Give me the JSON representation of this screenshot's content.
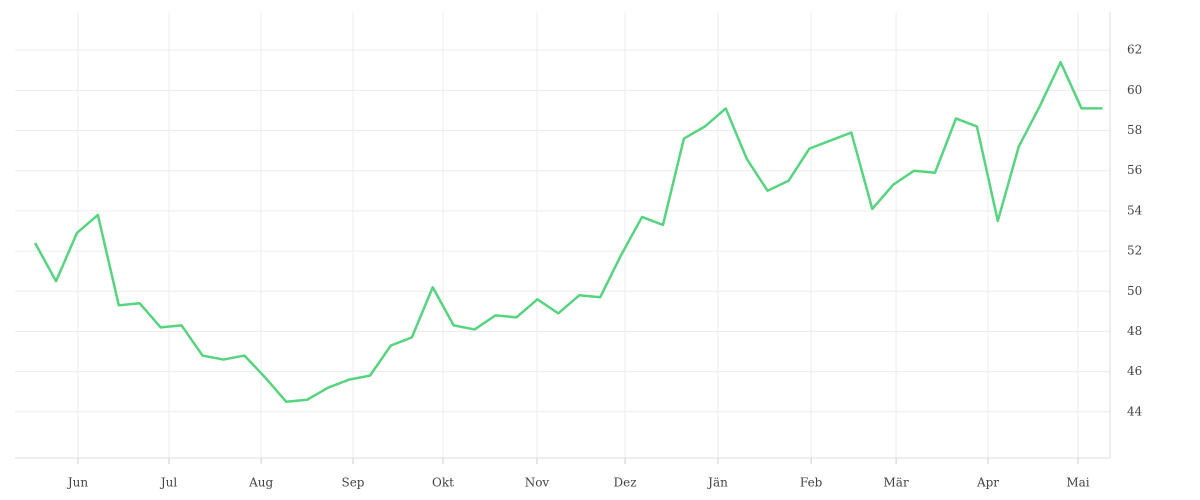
{
  "chart_data": {
    "type": "line",
    "x": [
      0,
      1,
      2,
      3,
      4,
      5,
      6,
      7,
      8,
      9,
      10,
      11,
      12,
      13,
      14,
      15,
      16,
      17,
      18,
      19,
      20,
      21,
      22,
      23,
      24,
      25,
      26,
      27,
      28,
      29,
      30,
      31,
      32,
      33,
      34,
      35,
      36,
      37,
      38,
      39,
      40,
      41,
      42,
      43,
      44,
      45,
      46,
      47,
      48,
      49,
      50,
      51
    ],
    "series": [
      {
        "color": "#57d47f",
        "values": [
          52.4,
          50.5,
          52.9,
          53.8,
          49.3,
          49.4,
          48.2,
          48.3,
          46.8,
          46.6,
          46.8,
          45.7,
          44.5,
          44.6,
          45.2,
          45.6,
          45.8,
          47.3,
          47.7,
          50.2,
          48.3,
          48.1,
          48.8,
          48.7,
          49.6,
          48.9,
          49.8,
          49.7,
          51.8,
          53.7,
          53.3,
          57.6,
          58.2,
          59.1,
          56.6,
          55.0,
          55.5,
          57.1,
          57.5,
          57.9,
          54.1,
          55.3,
          56.0,
          55.9,
          58.6,
          58.2,
          53.5,
          57.2,
          59.2,
          61.4,
          59.1,
          59.1
        ]
      }
    ],
    "xlim": [
      -0.96,
      51.36
    ],
    "xticks": [
      {
        "value": 2.05,
        "label": "Jun"
      },
      {
        "value": 6.4,
        "label": "Jul"
      },
      {
        "value": 10.8,
        "label": "Aug"
      },
      {
        "value": 15.19,
        "label": "Sep"
      },
      {
        "value": 19.49,
        "label": "Okt"
      },
      {
        "value": 23.98,
        "label": "Nov"
      },
      {
        "value": 28.19,
        "label": "Dez"
      },
      {
        "value": 32.63,
        "label": "Jän"
      },
      {
        "value": 37.08,
        "label": "Feb"
      },
      {
        "value": 41.14,
        "label": "Mär"
      },
      {
        "value": 45.53,
        "label": "Apr"
      },
      {
        "value": 49.83,
        "label": "Mai"
      }
    ],
    "ylim": [
      41.7,
      63.9
    ],
    "yticks": [
      44,
      46,
      48,
      50,
      52,
      54,
      56,
      58,
      60,
      62
    ],
    "grid": true
  }
}
